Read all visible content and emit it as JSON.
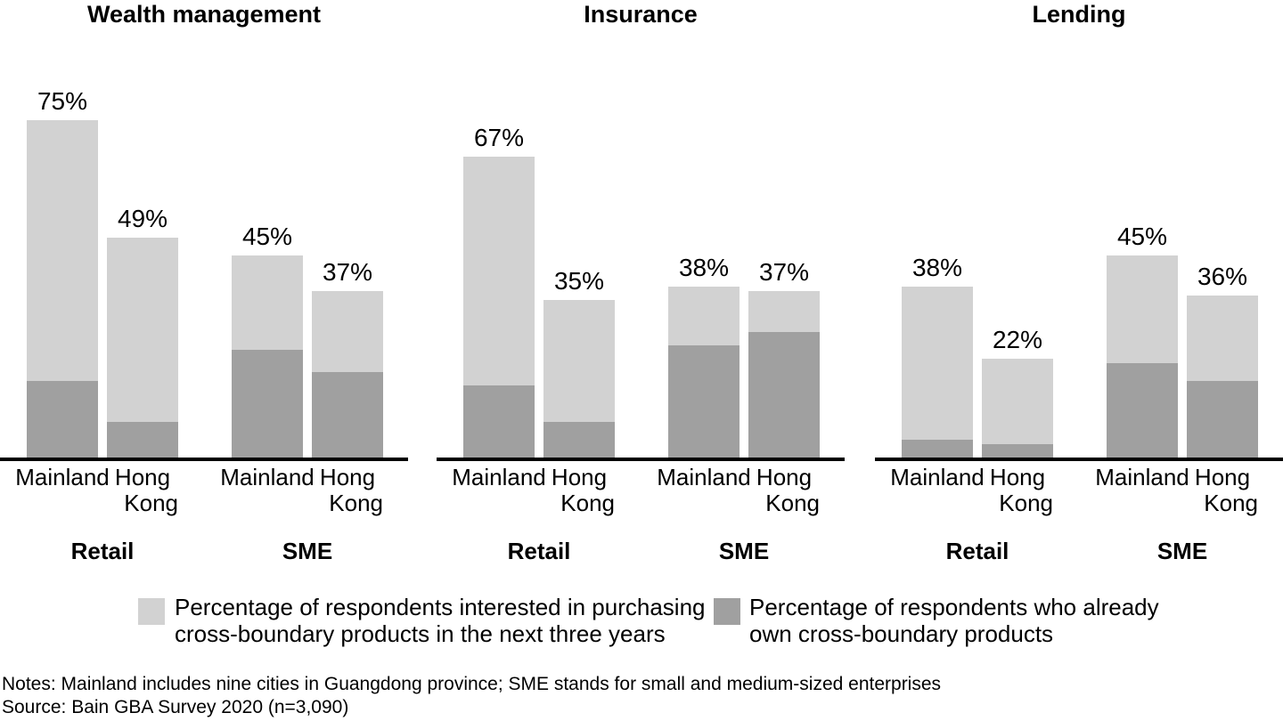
{
  "colors": {
    "interested": "#d2d2d2",
    "owned": "#a0a0a0",
    "axis": "#000000",
    "text": "#000000"
  },
  "chart_data": {
    "type": "bar",
    "stacked": true,
    "unit": "%",
    "grid": false,
    "y_axis_visible": false,
    "legend_position": "bottom",
    "legend": [
      {
        "key": "interested",
        "color": "#d2d2d2",
        "label_line1": "Percentage of respondents interested in purchasing",
        "label_line2": "cross-boundary products in the next three years"
      },
      {
        "key": "owned",
        "color": "#a0a0a0",
        "label_line1": "Percentage of respondents who already",
        "label_line2": "own cross-boundary products"
      }
    ],
    "panels": [
      {
        "title": "Wealth management",
        "groups": [
          {
            "label": "Retail",
            "bars": [
              {
                "region": "Mainland",
                "label": "75%",
                "total_pct": 75,
                "owned_pct": 17
              },
              {
                "region": "Hong Kong",
                "label": "49%",
                "total_pct": 49,
                "owned_pct": 8
              }
            ]
          },
          {
            "label": "SME",
            "bars": [
              {
                "region": "Mainland",
                "label": "45%",
                "total_pct": 45,
                "owned_pct": 24
              },
              {
                "region": "Hong Kong",
                "label": "37%",
                "total_pct": 37,
                "owned_pct": 19
              }
            ]
          }
        ]
      },
      {
        "title": "Insurance",
        "groups": [
          {
            "label": "Retail",
            "bars": [
              {
                "region": "Mainland",
                "label": "67%",
                "total_pct": 67,
                "owned_pct": 16
              },
              {
                "region": "Hong Kong",
                "label": "35%",
                "total_pct": 35,
                "owned_pct": 8
              }
            ]
          },
          {
            "label": "SME",
            "bars": [
              {
                "region": "Mainland",
                "label": "38%",
                "total_pct": 38,
                "owned_pct": 25
              },
              {
                "region": "Hong Kong",
                "label": "37%",
                "total_pct": 37,
                "owned_pct": 28
              }
            ]
          }
        ]
      },
      {
        "title": "Lending",
        "groups": [
          {
            "label": "Retail",
            "bars": [
              {
                "region": "Mainland",
                "label": "38%",
                "total_pct": 38,
                "owned_pct": 4
              },
              {
                "region": "Hong Kong",
                "label": "22%",
                "total_pct": 22,
                "owned_pct": 3
              }
            ]
          },
          {
            "label": "SME",
            "bars": [
              {
                "region": "Mainland",
                "label": "45%",
                "total_pct": 45,
                "owned_pct": 21
              },
              {
                "region": "Hong Kong",
                "label": "36%",
                "total_pct": 36,
                "owned_pct": 17
              }
            ]
          }
        ]
      }
    ]
  },
  "footer": {
    "notes": "Notes: Mainland includes nine cities in Guangdong province; SME stands for small and medium-sized enterprises",
    "source": "Source: Bain GBA Survey 2020 (n=3,090)"
  }
}
